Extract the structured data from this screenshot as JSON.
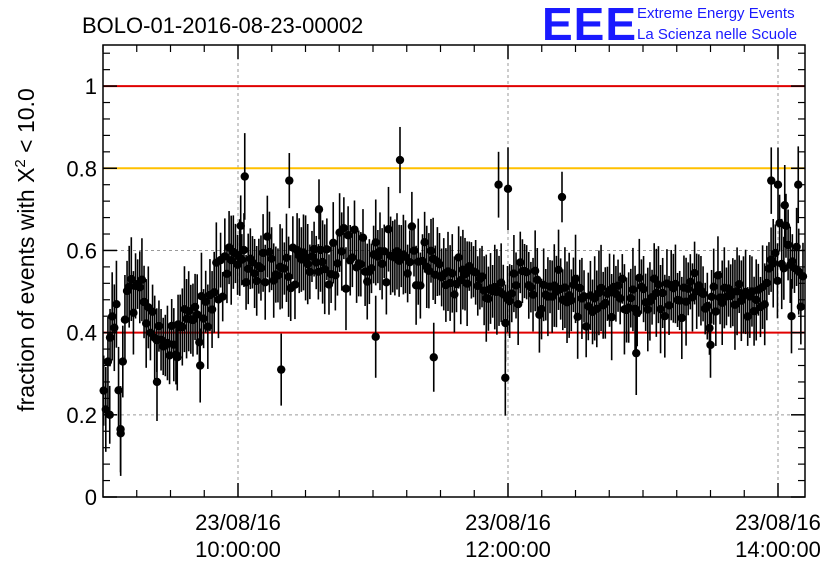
{
  "chart_data": {
    "type": "scatter",
    "title": "BOLO-01-2016-08-23-00002",
    "ylabel_prefix": "fraction of events with ",
    "ylabel_chi": "X",
    "ylabel_sup": "2",
    "ylabel_suffix": " < 10.0",
    "xlabel": "",
    "x_unit": "hours",
    "xlim": [
      9.0,
      14.2
    ],
    "ylim": [
      0,
      1.1
    ],
    "yticks": [
      0,
      0.2,
      0.4,
      0.6,
      0.8,
      1
    ],
    "ytick_labels": [
      "0",
      "0.2",
      "0.4",
      "0.6",
      "0.8",
      "1"
    ],
    "xticks": [
      {
        "x": 10,
        "date": "23/08/16",
        "time": "10:00:00"
      },
      {
        "x": 12,
        "date": "23/08/16",
        "time": "12:00:00"
      },
      {
        "x": 14,
        "date": "23/08/16",
        "time": "14:00:00"
      }
    ],
    "grid": true,
    "reference_lines": [
      {
        "y": 1.0,
        "color": "#e00000"
      },
      {
        "y": 0.8,
        "color": "#ffc000"
      },
      {
        "y": 0.4,
        "color": "#e00000"
      }
    ],
    "anchors": [
      [
        9.0,
        0.21
      ],
      [
        9.03,
        0.27
      ],
      [
        9.06,
        0.4
      ],
      [
        9.1,
        0.45
      ],
      [
        9.13,
        0.17
      ],
      [
        9.17,
        0.5
      ],
      [
        9.22,
        0.52
      ],
      [
        9.28,
        0.48
      ],
      [
        9.35,
        0.44
      ],
      [
        9.42,
        0.38
      ],
      [
        9.48,
        0.32
      ],
      [
        9.55,
        0.42
      ],
      [
        9.62,
        0.46
      ],
      [
        9.7,
        0.43
      ],
      [
        9.78,
        0.47
      ],
      [
        9.85,
        0.52
      ],
      [
        9.93,
        0.56
      ],
      [
        10.0,
        0.58
      ],
      [
        10.1,
        0.56
      ],
      [
        10.2,
        0.57
      ],
      [
        10.35,
        0.56
      ],
      [
        10.5,
        0.58
      ],
      [
        10.7,
        0.59
      ],
      [
        10.9,
        0.57
      ],
      [
        11.1,
        0.59
      ],
      [
        11.3,
        0.58
      ],
      [
        11.5,
        0.57
      ],
      [
        11.7,
        0.54
      ],
      [
        11.9,
        0.51
      ],
      [
        12.0,
        0.48
      ],
      [
        12.1,
        0.5
      ],
      [
        12.3,
        0.51
      ],
      [
        12.5,
        0.5
      ],
      [
        12.7,
        0.49
      ],
      [
        12.9,
        0.48
      ],
      [
        13.1,
        0.5
      ],
      [
        13.3,
        0.51
      ],
      [
        13.45,
        0.5
      ],
      [
        13.6,
        0.48
      ],
      [
        13.75,
        0.47
      ],
      [
        13.88,
        0.5
      ],
      [
        13.97,
        0.58
      ],
      [
        14.05,
        0.62
      ],
      [
        14.12,
        0.57
      ],
      [
        14.18,
        0.53
      ]
    ],
    "outliers": [
      [
        9.13,
        0.165
      ],
      [
        9.05,
        0.2
      ],
      [
        9.4,
        0.28
      ],
      [
        9.55,
        0.34
      ],
      [
        9.72,
        0.32
      ],
      [
        10.02,
        0.66
      ],
      [
        10.05,
        0.78
      ],
      [
        10.38,
        0.77
      ],
      [
        10.32,
        0.31
      ],
      [
        10.6,
        0.7
      ],
      [
        11.02,
        0.39
      ],
      [
        11.2,
        0.82
      ],
      [
        11.45,
        0.34
      ],
      [
        11.93,
        0.76
      ],
      [
        11.98,
        0.29
      ],
      [
        12.0,
        0.75
      ],
      [
        12.4,
        0.73
      ],
      [
        12.95,
        0.35
      ],
      [
        13.5,
        0.37
      ],
      [
        13.95,
        0.77
      ],
      [
        14.0,
        0.76
      ],
      [
        14.05,
        0.71
      ],
      [
        14.1,
        0.44
      ],
      [
        14.15,
        0.76
      ]
    ],
    "n_points": 330,
    "seed": 7,
    "marker_color": "#000000"
  },
  "logo": {
    "big": "EEE",
    "line1": "Extreme Energy Events",
    "line2": "La Scienza nelle Scuole"
  }
}
